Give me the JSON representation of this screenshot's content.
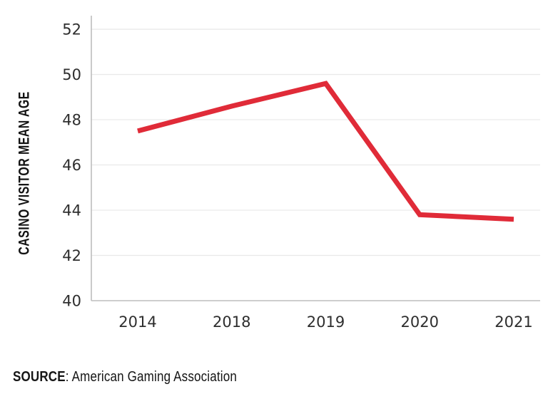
{
  "chart_data": {
    "type": "line",
    "title": "",
    "xlabel": "",
    "ylabel": "CASINO VISITOR MEAN AGE",
    "x": [
      "2014",
      "2018",
      "2019",
      "2020",
      "2021"
    ],
    "series": [
      {
        "name": "Casino visitor mean age",
        "values": [
          47.5,
          48.6,
          49.6,
          43.8,
          43.6
        ],
        "color": "#e02b38"
      }
    ],
    "ylim": [
      40,
      52.6
    ],
    "yticks": [
      40,
      42,
      44,
      46,
      48,
      50,
      52
    ],
    "grid": true,
    "legend_position": "none"
  },
  "source": {
    "label": "SOURCE",
    "text": ": American Gaming Association"
  },
  "colors": {
    "line": "#e02b38",
    "gridline": "#e9e9e9",
    "axis": "#bdbdbd",
    "tick_label": "#2e2e2e",
    "title_text": "#131313"
  }
}
